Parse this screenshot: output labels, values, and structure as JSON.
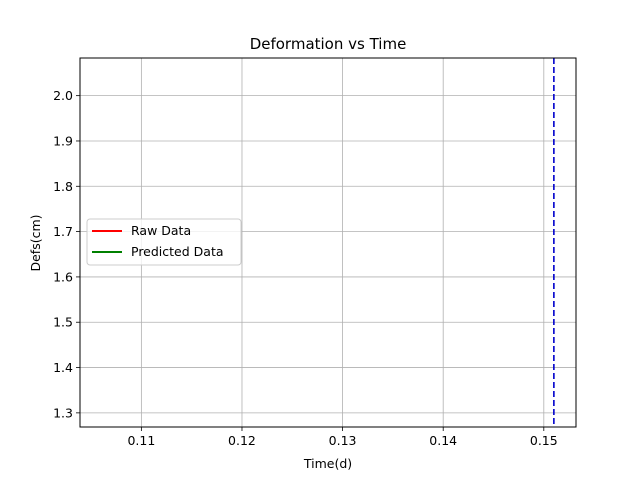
{
  "chart_data": {
    "type": "line",
    "title": "Deformation vs Time",
    "xlabel": "Time(d)",
    "ylabel": "Defs(cm)",
    "xlim": [
      0.1039,
      0.1532
    ],
    "ylim": [
      1.2688,
      2.0831
    ],
    "x_ticks": [
      0.11,
      0.12,
      0.13,
      0.14,
      0.15
    ],
    "x_tick_labels": [
      "0.11",
      "0.12",
      "0.13",
      "0.14",
      "0.15"
    ],
    "y_ticks": [
      1.3,
      1.4,
      1.5,
      1.6,
      1.7,
      1.8,
      1.9,
      2.0
    ],
    "y_tick_labels": [
      "1.3",
      "1.4",
      "1.5",
      "1.6",
      "1.7",
      "1.8",
      "1.9",
      "2.0"
    ],
    "grid": true,
    "legend_position": "center-left",
    "series": [
      {
        "name": "Raw Data",
        "color": "#ff0000",
        "x": [],
        "y": []
      },
      {
        "name": "Predicted Data",
        "color": "#008000",
        "x": [],
        "y": []
      }
    ],
    "vlines": [
      {
        "x": 0.151,
        "color": "#0000cc",
        "style": "dashed"
      }
    ]
  }
}
